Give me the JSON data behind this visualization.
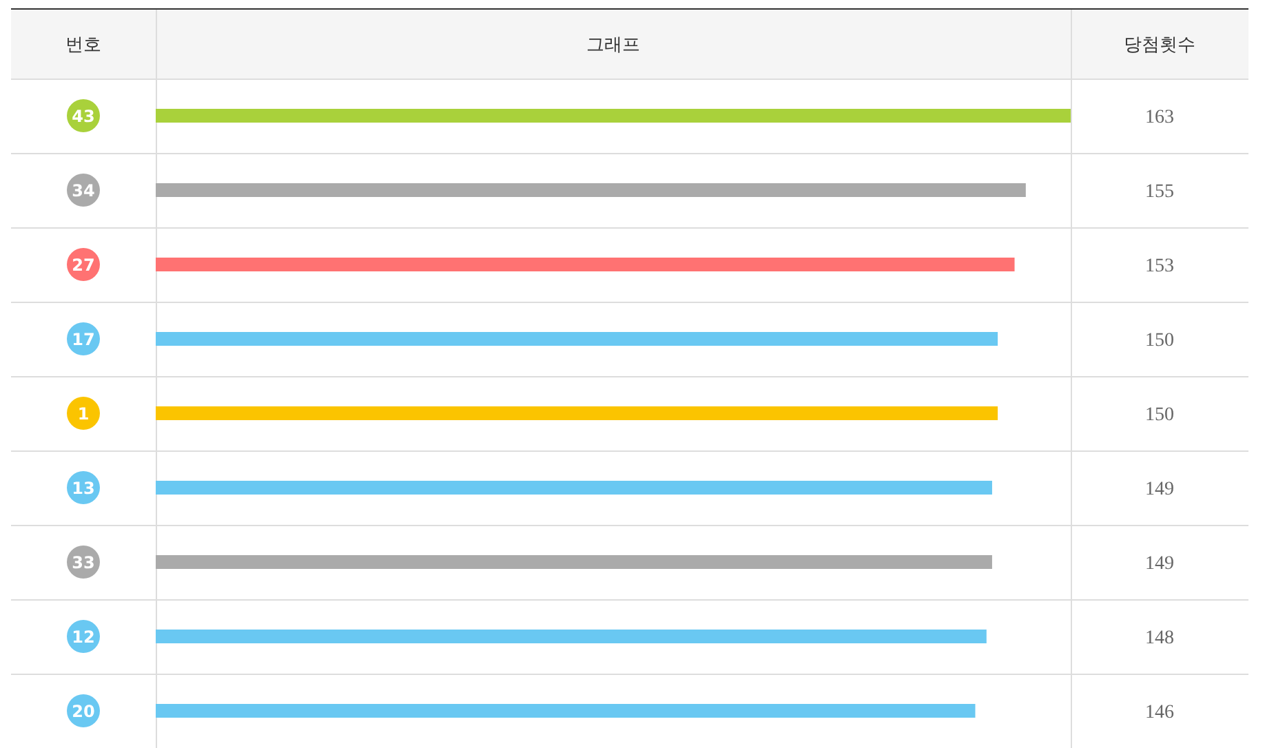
{
  "chart_data": {
    "type": "bar",
    "orientation": "horizontal",
    "title": "그래프",
    "ylabel": "번호",
    "xlabel": "당첨횟수",
    "categories": [
      "43",
      "34",
      "27",
      "17",
      "1",
      "13",
      "33",
      "12",
      "20"
    ],
    "values": [
      163,
      155,
      153,
      150,
      150,
      149,
      149,
      148,
      146
    ],
    "colors": [
      "#a9d13b",
      "#aaaaaa",
      "#ff7272",
      "#69c8f2",
      "#fbc400",
      "#69c8f2",
      "#aaaaaa",
      "#69c8f2",
      "#69c8f2"
    ],
    "data_labels": true,
    "grid": true
  }
}
